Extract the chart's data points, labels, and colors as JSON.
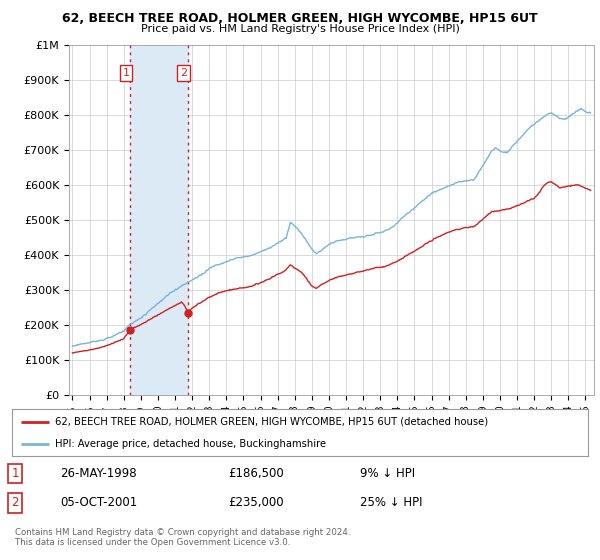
{
  "title1": "62, BEECH TREE ROAD, HOLMER GREEN, HIGH WYCOMBE, HP15 6UT",
  "title2": "Price paid vs. HM Land Registry's House Price Index (HPI)",
  "legend_line1": "62, BEECH TREE ROAD, HOLMER GREEN, HIGH WYCOMBE, HP15 6UT (detached house)",
  "legend_line2": "HPI: Average price, detached house, Buckinghamshire",
  "table_row1": [
    "1",
    "26-MAY-1998",
    "£186,500",
    "9% ↓ HPI"
  ],
  "table_row2": [
    "2",
    "05-OCT-2001",
    "£235,000",
    "25% ↓ HPI"
  ],
  "copyright": "Contains HM Land Registry data © Crown copyright and database right 2024.\nThis data is licensed under the Open Government Licence v3.0.",
  "sale1_date": 1998.38,
  "sale1_price": 186500,
  "sale2_date": 2001.75,
  "sale2_price": 235000,
  "hpi_color": "#7ab4d8",
  "price_color": "#cc2222",
  "vline_color": "#cc2222",
  "highlight_color": "#dceaf5",
  "ylim": [
    0,
    1000000
  ],
  "xlim_start": 1994.8,
  "xlim_end": 2025.5,
  "background_color": "#ffffff",
  "grid_color": "#cccccc",
  "hpi_anchors": [
    [
      1995.0,
      140000
    ],
    [
      1995.5,
      145000
    ],
    [
      1996.0,
      150000
    ],
    [
      1996.5,
      155000
    ],
    [
      1997.0,
      163000
    ],
    [
      1997.5,
      172000
    ],
    [
      1998.0,
      183000
    ],
    [
      1998.38,
      205000
    ],
    [
      1999.0,
      220000
    ],
    [
      1999.5,
      240000
    ],
    [
      2000.0,
      258000
    ],
    [
      2000.5,
      278000
    ],
    [
      2001.0,
      295000
    ],
    [
      2001.75,
      315000
    ],
    [
      2002.0,
      325000
    ],
    [
      2002.5,
      342000
    ],
    [
      2003.0,
      360000
    ],
    [
      2003.5,
      370000
    ],
    [
      2004.0,
      378000
    ],
    [
      2004.5,
      388000
    ],
    [
      2005.0,
      392000
    ],
    [
      2005.5,
      398000
    ],
    [
      2006.0,
      408000
    ],
    [
      2006.5,
      418000
    ],
    [
      2007.0,
      430000
    ],
    [
      2007.5,
      445000
    ],
    [
      2007.75,
      490000
    ],
    [
      2008.0,
      480000
    ],
    [
      2008.25,
      465000
    ],
    [
      2008.5,
      450000
    ],
    [
      2008.75,
      430000
    ],
    [
      2009.0,
      410000
    ],
    [
      2009.25,
      400000
    ],
    [
      2009.5,
      408000
    ],
    [
      2009.75,
      418000
    ],
    [
      2010.0,
      425000
    ],
    [
      2010.5,
      435000
    ],
    [
      2011.0,
      440000
    ],
    [
      2011.5,
      445000
    ],
    [
      2012.0,
      448000
    ],
    [
      2012.5,
      455000
    ],
    [
      2013.0,
      460000
    ],
    [
      2013.5,
      470000
    ],
    [
      2014.0,
      490000
    ],
    [
      2014.5,
      515000
    ],
    [
      2015.0,
      535000
    ],
    [
      2015.5,
      555000
    ],
    [
      2016.0,
      575000
    ],
    [
      2016.5,
      590000
    ],
    [
      2017.0,
      600000
    ],
    [
      2017.5,
      610000
    ],
    [
      2018.0,
      615000
    ],
    [
      2018.5,
      620000
    ],
    [
      2018.75,
      640000
    ],
    [
      2019.0,
      660000
    ],
    [
      2019.25,
      680000
    ],
    [
      2019.5,
      700000
    ],
    [
      2019.75,
      710000
    ],
    [
      2020.0,
      700000
    ],
    [
      2020.25,
      695000
    ],
    [
      2020.5,
      700000
    ],
    [
      2020.75,
      715000
    ],
    [
      2021.0,
      730000
    ],
    [
      2021.25,
      745000
    ],
    [
      2021.5,
      760000
    ],
    [
      2021.75,
      770000
    ],
    [
      2022.0,
      780000
    ],
    [
      2022.25,
      790000
    ],
    [
      2022.5,
      800000
    ],
    [
      2022.75,
      810000
    ],
    [
      2023.0,
      815000
    ],
    [
      2023.25,
      810000
    ],
    [
      2023.5,
      800000
    ],
    [
      2023.75,
      795000
    ],
    [
      2024.0,
      800000
    ],
    [
      2024.25,
      808000
    ],
    [
      2024.5,
      815000
    ],
    [
      2024.75,
      820000
    ],
    [
      2025.0,
      810000
    ],
    [
      2025.3,
      805000
    ]
  ],
  "price_anchors_pre_sale1": [
    [
      1995.0,
      120000
    ],
    [
      1995.5,
      124000
    ],
    [
      1996.0,
      128000
    ],
    [
      1996.5,
      133000
    ],
    [
      1997.0,
      140000
    ],
    [
      1997.5,
      150000
    ],
    [
      1998.0,
      160000
    ],
    [
      1998.38,
      186500
    ]
  ],
  "price_anchors_sale1_to_sale2": [
    [
      1998.38,
      186500
    ],
    [
      1998.5,
      190000
    ],
    [
      1999.0,
      200000
    ],
    [
      1999.5,
      215000
    ],
    [
      2000.0,
      228000
    ],
    [
      2000.5,
      242000
    ],
    [
      2001.0,
      255000
    ],
    [
      2001.38,
      265000
    ],
    [
      2001.5,
      260000
    ],
    [
      2001.75,
      235000
    ]
  ],
  "price_anchors_post_sale2": [
    [
      2001.75,
      235000
    ],
    [
      2002.0,
      248000
    ],
    [
      2002.5,
      262000
    ],
    [
      2003.0,
      278000
    ],
    [
      2003.5,
      290000
    ],
    [
      2004.0,
      298000
    ],
    [
      2004.5,
      305000
    ],
    [
      2005.0,
      308000
    ],
    [
      2005.5,
      312000
    ],
    [
      2006.0,
      320000
    ],
    [
      2006.5,
      330000
    ],
    [
      2007.0,
      342000
    ],
    [
      2007.5,
      356000
    ],
    [
      2007.75,
      370000
    ],
    [
      2008.0,
      360000
    ],
    [
      2008.5,
      340000
    ],
    [
      2009.0,
      305000
    ],
    [
      2009.25,
      298000
    ],
    [
      2009.5,
      308000
    ],
    [
      2010.0,
      320000
    ],
    [
      2010.5,
      330000
    ],
    [
      2011.0,
      338000
    ],
    [
      2011.5,
      345000
    ],
    [
      2012.0,
      350000
    ],
    [
      2012.5,
      358000
    ],
    [
      2013.0,
      362000
    ],
    [
      2013.5,
      368000
    ],
    [
      2014.0,
      378000
    ],
    [
      2014.5,
      392000
    ],
    [
      2015.0,
      406000
    ],
    [
      2015.5,
      420000
    ],
    [
      2016.0,
      435000
    ],
    [
      2016.5,
      448000
    ],
    [
      2017.0,
      458000
    ],
    [
      2017.5,
      466000
    ],
    [
      2018.0,
      472000
    ],
    [
      2018.5,
      478000
    ],
    [
      2019.0,
      498000
    ],
    [
      2019.5,
      518000
    ],
    [
      2020.0,
      520000
    ],
    [
      2020.5,
      525000
    ],
    [
      2021.0,
      535000
    ],
    [
      2021.5,
      548000
    ],
    [
      2022.0,
      558000
    ],
    [
      2022.25,
      572000
    ],
    [
      2022.5,
      590000
    ],
    [
      2022.75,
      602000
    ],
    [
      2023.0,
      608000
    ],
    [
      2023.25,
      600000
    ],
    [
      2023.5,
      590000
    ],
    [
      2024.0,
      595000
    ],
    [
      2024.5,
      600000
    ],
    [
      2025.0,
      590000
    ],
    [
      2025.3,
      585000
    ]
  ]
}
